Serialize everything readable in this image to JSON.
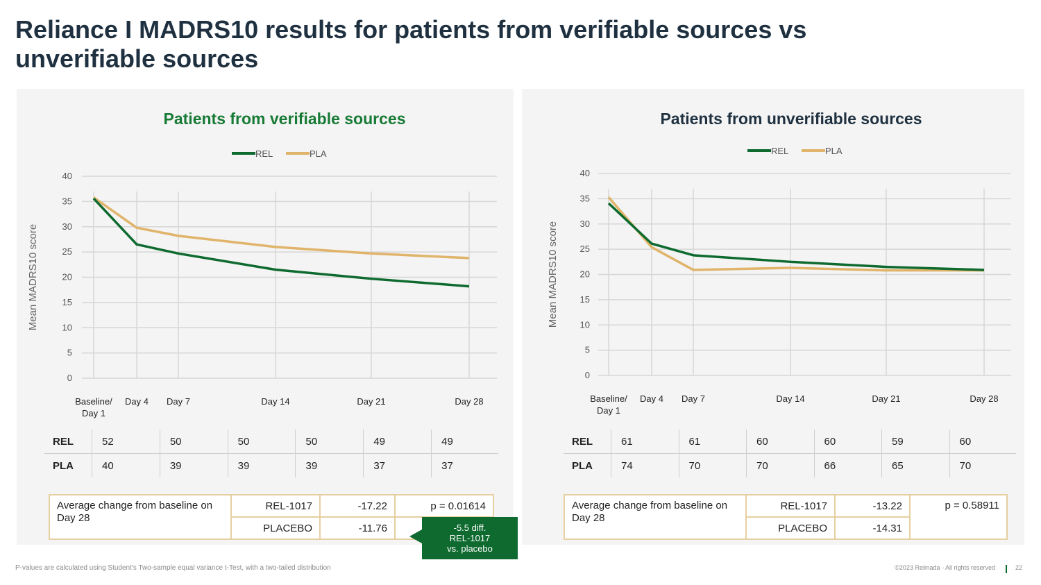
{
  "title": "Reliance I MADRS10 results for patients from verifiable sources vs unverifiable sources",
  "colors": {
    "rel": "#0e6a2f",
    "pla": "#e0b46a",
    "title_left": "#177a35",
    "title_right": "#1f3140",
    "border": "#e6cfa0"
  },
  "chart_data": [
    {
      "type": "line",
      "title": "Patients from verifiable sources",
      "ylabel": "Mean MADRS10 score",
      "xlabel": "",
      "ylim": [
        0,
        40
      ],
      "yticks": [
        "0",
        "5",
        "10",
        "15",
        "20",
        "25",
        "30",
        "35",
        "40"
      ],
      "x": [
        1,
        4,
        7,
        14,
        21,
        28
      ],
      "x_labels": [
        [
          "Baseline/",
          "Day 1"
        ],
        [
          "Day 4"
        ],
        [
          "Day 7"
        ],
        [
          "Day 14"
        ],
        [
          "Day 21"
        ],
        [
          "Day 28"
        ]
      ],
      "legend": [
        "REL",
        "PLA"
      ],
      "series": [
        {
          "name": "REL",
          "values": [
            35.6,
            26.5,
            24.7,
            21.5,
            19.7,
            18.2
          ]
        },
        {
          "name": "PLA",
          "values": [
            35.8,
            29.8,
            28.2,
            26.0,
            24.7,
            23.8
          ]
        }
      ],
      "n_table": {
        "rows": [
          {
            "label": "REL",
            "values": [
              "52",
              "50",
              "50",
              "50",
              "49",
              "49"
            ]
          },
          {
            "label": "PLA",
            "values": [
              "40",
              "39",
              "39",
              "39",
              "37",
              "37"
            ]
          }
        ]
      },
      "summary": {
        "desc": "Average change from baseline on Day 28",
        "rel_label": "REL-1017",
        "rel_value": "-17.22",
        "pla_label": "PLACEBO",
        "pla_value": "-11.76",
        "p_value": "p = 0.01614"
      }
    },
    {
      "type": "line",
      "title": "Patients from unverifiable sources",
      "ylabel": "Mean MADRS10 score",
      "xlabel": "",
      "ylim": [
        0,
        40
      ],
      "yticks": [
        "0",
        "5",
        "10",
        "15",
        "20",
        "25",
        "30",
        "35",
        "40"
      ],
      "x": [
        1,
        4,
        7,
        14,
        21,
        28
      ],
      "x_labels": [
        [
          "Baseline/",
          "Day 1"
        ],
        [
          "Day 4"
        ],
        [
          "Day 7"
        ],
        [
          "Day 14"
        ],
        [
          "Day 21"
        ],
        [
          "Day 28"
        ]
      ],
      "legend": [
        "REL",
        "PLA"
      ],
      "series": [
        {
          "name": "REL",
          "values": [
            34.1,
            26.1,
            23.8,
            22.5,
            21.5,
            20.9
          ]
        },
        {
          "name": "PLA",
          "values": [
            35.3,
            25.4,
            20.9,
            21.3,
            20.8,
            20.8
          ]
        }
      ],
      "n_table": {
        "rows": [
          {
            "label": "REL",
            "values": [
              "61",
              "61",
              "60",
              "60",
              "59",
              "60"
            ]
          },
          {
            "label": "PLA",
            "values": [
              "74",
              "70",
              "70",
              "66",
              "65",
              "70"
            ]
          }
        ]
      },
      "summary": {
        "desc": "Average change from baseline on Day 28",
        "rel_label": "REL-1017",
        "rel_value": "-13.22",
        "pla_label": "PLACEBO",
        "pla_value": "-14.31",
        "p_value": "p = 0.58911"
      }
    }
  ],
  "callout": {
    "line1": "-5.5 diff.",
    "line2": "REL-1017",
    "line3": "vs. placebo"
  },
  "footer": {
    "footnote": "P-values are calculated using Student's Two-sample equal variance t-Test, with a two-tailed distribution",
    "copyright": "©2023 Relmada - All rights reserved",
    "page": "22"
  }
}
